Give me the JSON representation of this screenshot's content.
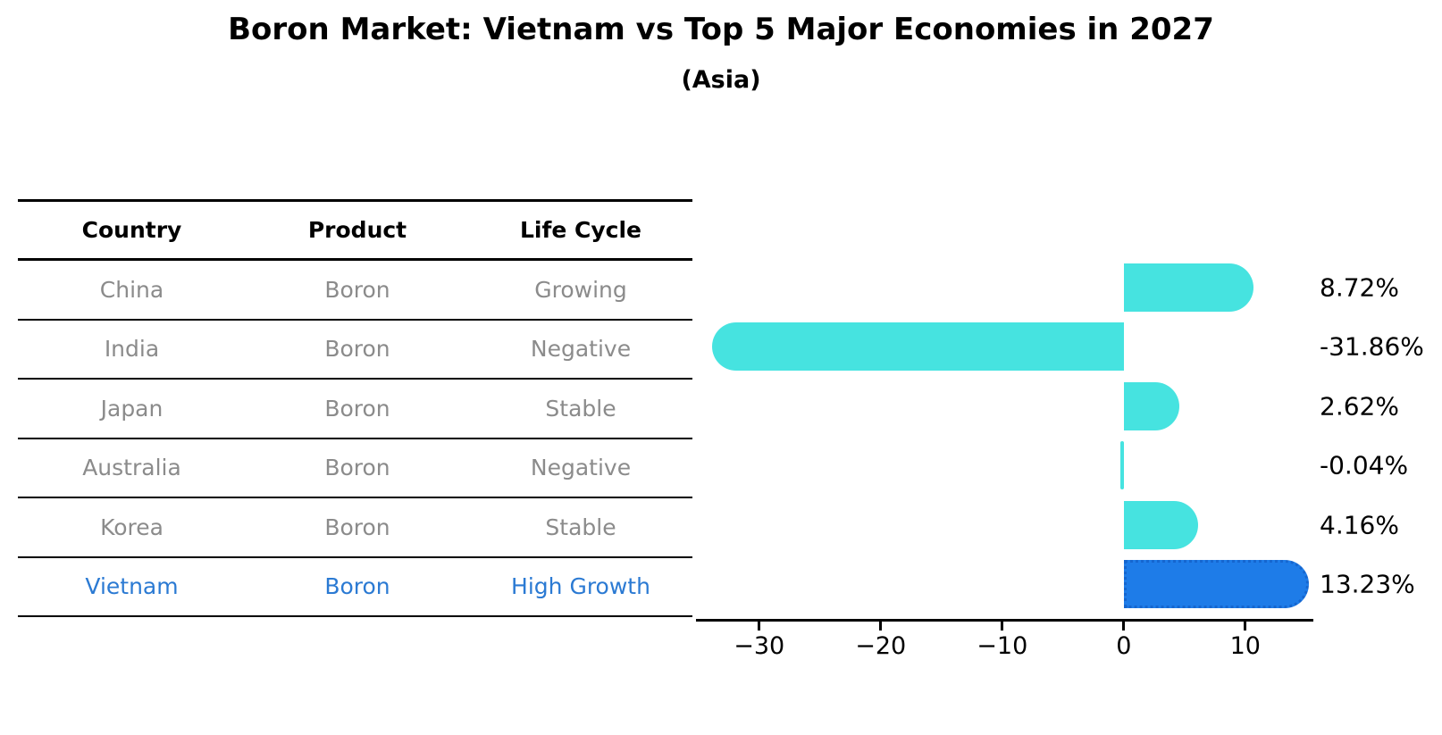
{
  "chart_data": {
    "type": "bar",
    "orientation": "horizontal",
    "title": "Boron Market: Vietnam vs Top 5 Major Economies in 2027",
    "subtitle": "(Asia)",
    "categories": [
      "China",
      "India",
      "Japan",
      "Australia",
      "Korea",
      "Vietnam"
    ],
    "values": [
      8.72,
      -31.86,
      2.62,
      -0.04,
      4.16,
      13.23
    ],
    "value_labels": [
      "8.72%",
      "-31.86%",
      "2.62%",
      "-0.04%",
      "4.16%",
      "13.23%"
    ],
    "x_ticks": [
      -30,
      -20,
      -10,
      0,
      10
    ],
    "x_tick_labels": [
      "−30",
      "−20",
      "−10",
      "0",
      "10"
    ],
    "xlim": [
      -35.2,
      15.6
    ],
    "grid": false,
    "legend": false,
    "highlight_category": "Vietnam",
    "colors": {
      "bar": "#46e3e0",
      "highlight_bar": "#1e7ce8",
      "highlight_bar_border": "#1566cf",
      "axis": "#000000",
      "value_label_text": "#000000"
    }
  },
  "table": {
    "headers": [
      "Country",
      "Product",
      "Life Cycle"
    ],
    "rows": [
      {
        "country": "China",
        "product": "Boron",
        "life_cycle": "Growing",
        "highlight": false
      },
      {
        "country": "India",
        "product": "Boron",
        "life_cycle": "Negative",
        "highlight": false
      },
      {
        "country": "Japan",
        "product": "Boron",
        "life_cycle": "Stable",
        "highlight": false
      },
      {
        "country": "Australia",
        "product": "Boron",
        "life_cycle": "Negative",
        "highlight": false
      },
      {
        "country": "Korea",
        "product": "Boron",
        "life_cycle": "Stable",
        "highlight": false
      },
      {
        "country": "Vietnam",
        "product": "Boron",
        "life_cycle": "High Growth",
        "highlight": true
      }
    ],
    "colors": {
      "header_text": "#000000",
      "row_text": "#8b8b8b",
      "highlight_row_text": "#2b7ad3",
      "line": "#000000"
    }
  }
}
